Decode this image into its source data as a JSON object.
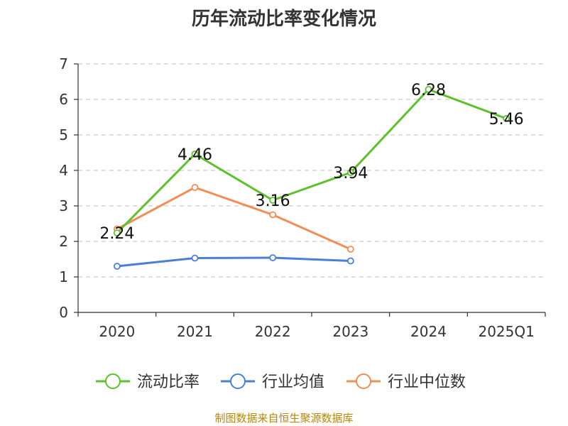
{
  "title": "历年流动比率变化情况",
  "source": "制图数据来自恒生聚源数据库",
  "chart_data": {
    "type": "line",
    "title": "历年流动比率变化情况",
    "categories": [
      "2020",
      "2021",
      "2022",
      "2023",
      "2024",
      "2025Q1"
    ],
    "ylim": [
      0,
      7
    ],
    "yticks": [
      0,
      1,
      2,
      3,
      4,
      5,
      6,
      7
    ],
    "grid": true,
    "legend_position": "bottom",
    "series": [
      {
        "name": "流动比率",
        "color": "#5cc12b",
        "values": [
          2.24,
          4.46,
          3.16,
          3.94,
          6.28,
          5.46
        ],
        "labels": [
          "2.24",
          "4.46",
          "3.16",
          "3.94",
          "6.28",
          "5.46"
        ]
      },
      {
        "name": "行业均值",
        "color": "#4a7fd8",
        "values": [
          1.3,
          1.53,
          1.54,
          1.45,
          null,
          null
        ]
      },
      {
        "name": "行业中位数",
        "color": "#f28e55",
        "values": [
          2.35,
          3.52,
          2.75,
          1.78,
          null,
          null
        ]
      }
    ]
  }
}
